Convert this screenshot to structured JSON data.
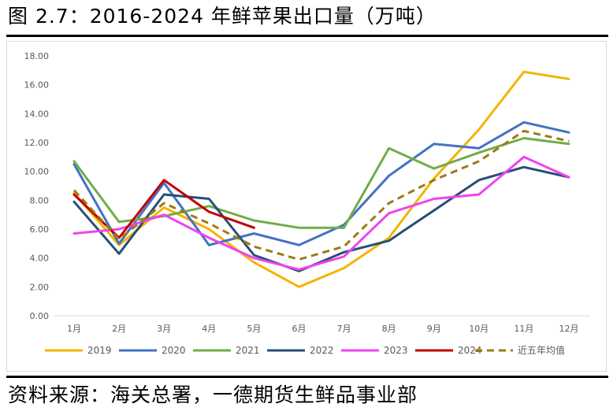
{
  "title": "图 2.7：2016-2024 年鲜苹果出口量（万吨）",
  "source": "资料来源：海关总署，一德期货生鲜品事业部",
  "chart_data": {
    "type": "line",
    "title": "2016-2024 年鲜苹果出口量（万吨）",
    "xlabel": "",
    "ylabel": "",
    "categories": [
      "1月",
      "2月",
      "3月",
      "4月",
      "5月",
      "6月",
      "7月",
      "8月",
      "9月",
      "10月",
      "11月",
      "12月"
    ],
    "ylim": [
      0,
      18
    ],
    "ytick_labels": [
      "0.00",
      "2.00",
      "4.00",
      "6.00",
      "8.00",
      "10.00",
      "12.00",
      "14.00",
      "16.00",
      "18.00"
    ],
    "legend_position": "bottom",
    "grid": false,
    "series": [
      {
        "name": "2019",
        "color": "#F4B400",
        "dashed": false,
        "values": [
          8.5,
          4.9,
          7.5,
          6.0,
          3.7,
          2.0,
          3.3,
          5.4,
          9.5,
          12.9,
          16.9,
          16.4
        ]
      },
      {
        "name": "2020",
        "color": "#4472C4",
        "dashed": false,
        "values": [
          10.5,
          5.0,
          9.2,
          4.9,
          5.7,
          4.9,
          6.3,
          9.7,
          11.9,
          11.6,
          13.4,
          12.7
        ]
      },
      {
        "name": "2021",
        "color": "#70AD47",
        "dashed": false,
        "values": [
          10.7,
          6.5,
          6.9,
          7.6,
          6.6,
          6.1,
          6.1,
          11.6,
          10.2,
          11.3,
          12.3,
          11.9
        ]
      },
      {
        "name": "2022",
        "color": "#264F78",
        "dashed": false,
        "values": [
          7.9,
          4.3,
          8.4,
          8.1,
          4.2,
          3.1,
          4.4,
          5.2,
          7.3,
          9.4,
          10.3,
          9.6
        ]
      },
      {
        "name": "2023",
        "color": "#EE44EE",
        "dashed": false,
        "values": [
          5.7,
          6.0,
          7.0,
          5.4,
          4.0,
          3.2,
          4.1,
          7.1,
          8.1,
          8.4,
          11.0,
          9.6
        ]
      },
      {
        "name": "2024",
        "color": "#C00000",
        "dashed": false,
        "values": [
          8.4,
          5.4,
          9.4,
          7.2,
          6.1,
          null,
          null,
          null,
          null,
          null,
          null,
          null
        ]
      },
      {
        "name": "近五年均值",
        "color": "#9C7B14",
        "dashed": true,
        "values": [
          8.7,
          5.3,
          7.8,
          6.4,
          4.8,
          3.9,
          4.8,
          7.8,
          9.4,
          10.7,
          12.8,
          12.1
        ]
      }
    ]
  }
}
